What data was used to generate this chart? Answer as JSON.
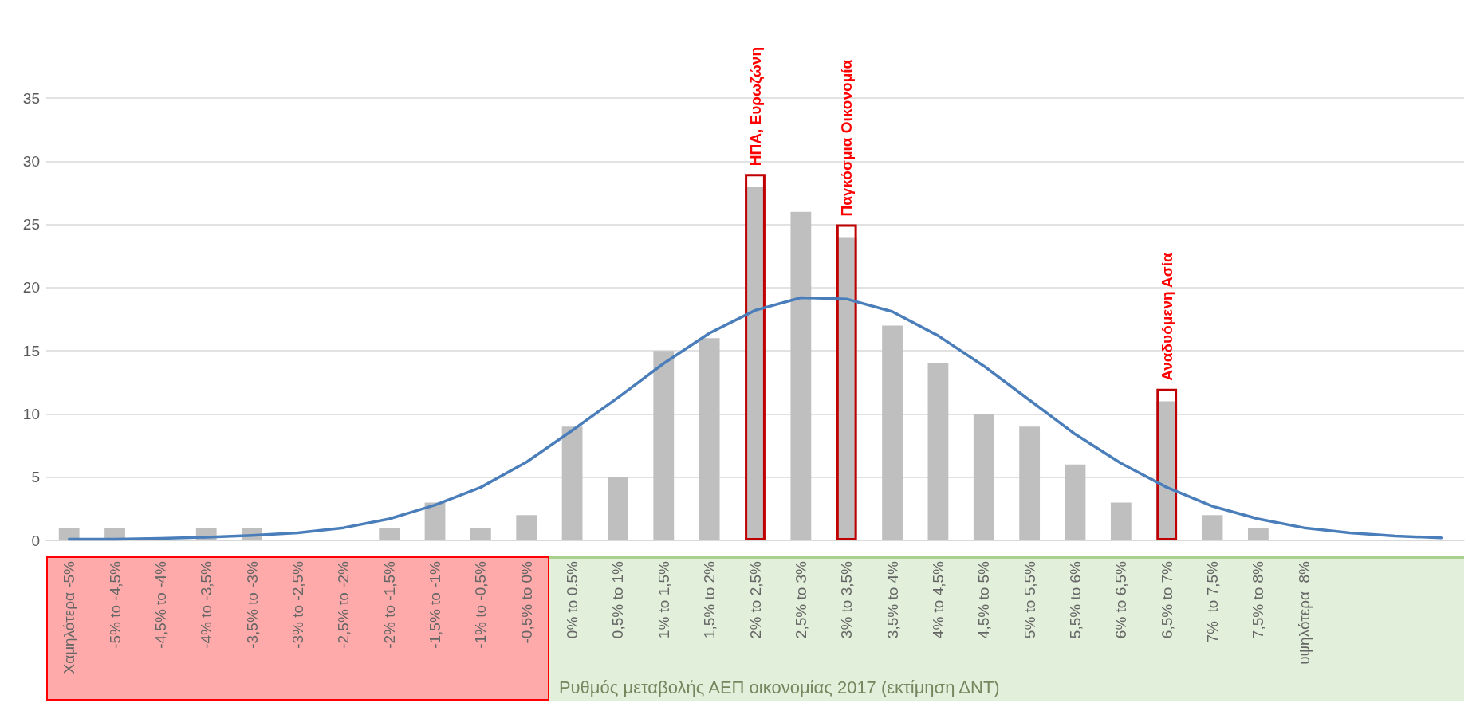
{
  "chart_data": {
    "type": "bar",
    "xlabel": "Ρυθμός μεταβολής ΑΕΠ οικονομίας 2017 (εκτίμηση ΔΝΤ)",
    "categories": [
      "Χαμηλότερα -5%",
      "-5% to -4,5%",
      "-4,5% to -4%",
      "-4% to -3,5%",
      "-3,5% to -3%",
      "-3% to -2,5%",
      "-2,5% to -2%",
      "-2% to -1,5%",
      "-1,5% to -1%",
      "-1% to -0,5%",
      "-0,5% to 0%",
      "0% to 0.5%",
      "0,5% to 1%",
      "1% to 1,5%",
      "1,5% to 2%",
      "2% to 2,5%",
      "2,5% to 3%",
      "3% to 3,5%",
      "3,5% to 4%",
      "4% to 4,5%",
      "4,5% to 5%",
      "5% to 5,5%",
      "5,5% to 6%",
      "6% to 6,5%",
      "6,5% to 7%",
      "7%  to 7,5%",
      "7,5% to 8%",
      "υψηλότερα  8%",
      null,
      null,
      null
    ],
    "series": [
      {
        "color": "#bfbfbf",
        "values": [
          1,
          1,
          0,
          1,
          1,
          0,
          0,
          1,
          3,
          1,
          2,
          9,
          5,
          15,
          16,
          28,
          26,
          24,
          17,
          14,
          10,
          9,
          6,
          3,
          11,
          2,
          1,
          0,
          null,
          null,
          null
        ]
      },
      {
        "color": "#c00000",
        "values": [
          null,
          null,
          null,
          null,
          null,
          null,
          null,
          null,
          null,
          null,
          null,
          null,
          null,
          null,
          null,
          29,
          null,
          25,
          null,
          null,
          null,
          null,
          null,
          null,
          12,
          null,
          null,
          null,
          null,
          null,
          null
        ]
      },
      {
        "type": "line",
        "color": "#4a7ebb",
        "values": [
          0.1,
          0.1,
          0.15,
          0.25,
          0.4,
          0.6,
          1.0,
          1.7,
          2.8,
          4.2,
          6.2,
          8.7,
          11.3,
          14.0,
          16.4,
          18.2,
          19.2,
          19.1,
          18.1,
          16.2,
          13.8,
          11.1,
          8.4,
          6.1,
          4.2,
          2.7,
          1.7,
          1.0,
          0.6,
          0.35,
          0.2
        ]
      }
    ],
    "annotations": [
      {
        "text": "ΗΠΑ, Ευρωζώνη",
        "x": "2% to 2,5%",
        "y": 29
      },
      {
        "text": "Παγκόσμια Οικονομία",
        "x": "3% to 3,5%",
        "y": 25
      },
      {
        "text": "Αναδυόμενη Ασία",
        "x": "6,5% to 7%",
        "y": 12
      }
    ],
    "ylim": [
      0,
      35
    ],
    "yticks": [
      0,
      5,
      10,
      15,
      20,
      25,
      30,
      35
    ],
    "grid": "y",
    "marker": "none",
    "line_style": "solid"
  }
}
